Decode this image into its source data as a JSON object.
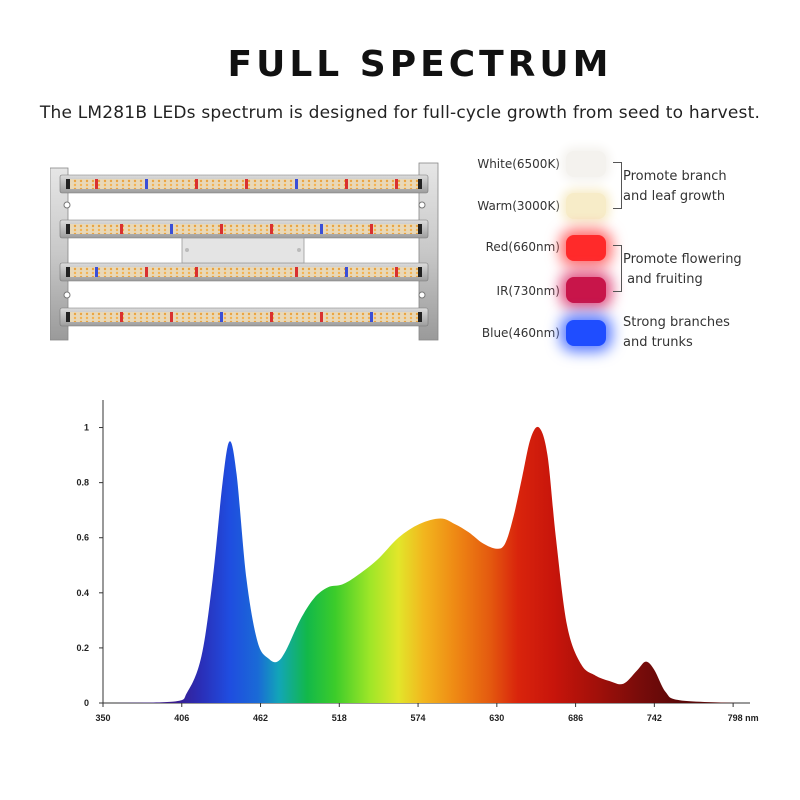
{
  "header": {
    "title": "FULL SPECTRUM",
    "subtitle": "The LM281B LEDs spectrum is designed for full-cycle growth from seed to harvest."
  },
  "legend": {
    "items": [
      {
        "label": "White(6500K)",
        "color": "#f4f2ee"
      },
      {
        "label": "Warm(3000K)",
        "color": "#f7ecc8"
      },
      {
        "label": "Red(660nm)",
        "color": "#ff2a2a"
      },
      {
        "label": "IR(730nm)",
        "color": "#c8154a"
      },
      {
        "label": "Blue(460nm)",
        "color": "#1f4dff"
      }
    ],
    "groups": [
      {
        "line1": "Promote branch",
        "line2": "and leaf growth"
      },
      {
        "line1": "Promote flowering",
        "line2": " and fruiting"
      },
      {
        "line1": "Strong branches",
        "line2": "and trunks"
      }
    ]
  },
  "chart_data": {
    "type": "area",
    "title": "",
    "xlabel": "",
    "ylabel": "",
    "xlim": [
      350,
      810
    ],
    "ylim": [
      0,
      1.1
    ],
    "x_ticks": [
      "350",
      "406",
      "462",
      "518",
      "574",
      "630",
      "686",
      "742",
      "798 nm"
    ],
    "x_tick_values": [
      350,
      406,
      462,
      518,
      574,
      630,
      686,
      742,
      798
    ],
    "y_ticks": [
      "0",
      "0.2",
      "0.4",
      "0.6",
      "0.8",
      "1"
    ],
    "y_tick_values": [
      0,
      0.2,
      0.4,
      0.6,
      0.8,
      1
    ],
    "x": [
      350,
      400,
      410,
      420,
      428,
      435,
      440,
      445,
      452,
      460,
      468,
      474,
      480,
      490,
      500,
      510,
      520,
      530,
      545,
      560,
      575,
      590,
      600,
      610,
      620,
      630,
      636,
      642,
      648,
      654,
      660,
      666,
      672,
      680,
      690,
      700,
      710,
      720,
      730,
      736,
      742,
      750,
      760,
      800
    ],
    "values": [
      0,
      0.005,
      0.04,
      0.17,
      0.45,
      0.8,
      0.95,
      0.83,
      0.45,
      0.22,
      0.16,
      0.15,
      0.19,
      0.3,
      0.38,
      0.42,
      0.43,
      0.46,
      0.52,
      0.6,
      0.65,
      0.67,
      0.65,
      0.62,
      0.58,
      0.56,
      0.58,
      0.68,
      0.82,
      0.96,
      1.0,
      0.9,
      0.6,
      0.28,
      0.14,
      0.1,
      0.08,
      0.07,
      0.12,
      0.15,
      0.12,
      0.04,
      0.01,
      0
    ]
  }
}
